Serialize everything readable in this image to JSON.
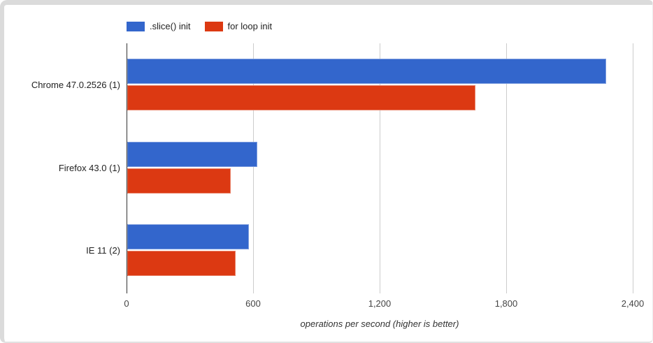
{
  "frame": {
    "background": "#ffffff",
    "border_color": "#dbdbdb"
  },
  "chart_data": {
    "type": "bar",
    "orientation": "horizontal",
    "title": "",
    "xlabel": "operations per second (higher is better)",
    "ylabel": "",
    "categories": [
      "Chrome 47.0.2526 (1)",
      "Firefox 43.0 (1)",
      "IE 11 (2)"
    ],
    "series": [
      {
        "name": ".slice() init",
        "color": "#3366cc",
        "values": [
          2270,
          615,
          577
        ]
      },
      {
        "name": "for loop init",
        "color": "#dc3912",
        "values": [
          1650,
          490,
          515
        ]
      }
    ],
    "xlim": [
      0,
      2400
    ],
    "x_tick_values": [
      0,
      600,
      1200,
      1800,
      2400
    ],
    "x_tick_labels": [
      "0",
      "600",
      "1,200",
      "1,800",
      "2,400"
    ],
    "grid": true,
    "gridline_color": "#cccccc",
    "axis_line_color": "#333333",
    "legend_position": "top"
  }
}
